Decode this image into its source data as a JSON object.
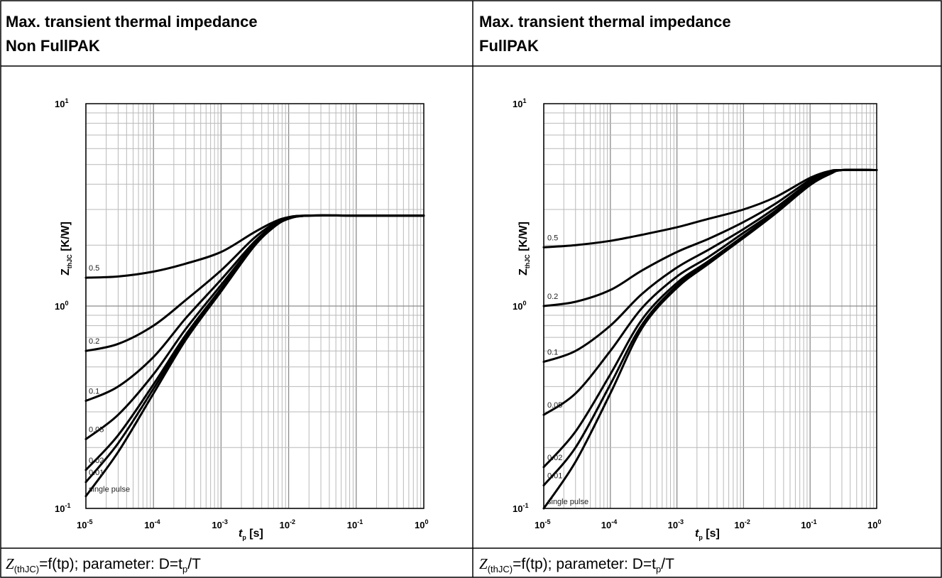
{
  "panels": [
    {
      "title_line1": "Max. transient thermal impedance",
      "title_line2": "Non FullPAK",
      "caption": {
        "z": "Z",
        "sub": "(thJC)",
        "mid": "=f(tp); parameter: D=t",
        "psub": "p",
        "tail": "/T"
      }
    },
    {
      "title_line1": "Max. transient thermal impedance",
      "title_line2": "FullPAK",
      "caption": {
        "z": "Z",
        "sub": "(thJC)",
        "mid": "=f(tp); parameter: D=t",
        "psub": "p",
        "tail": "/T"
      }
    }
  ],
  "chart_data": [
    {
      "type": "line",
      "title": "",
      "xlabel": "tp [s]",
      "ylabel": "ZthJC [K/W]",
      "x_scale": "log",
      "y_scale": "log",
      "xlim": [
        1e-05,
        1
      ],
      "ylim": [
        0.1,
        10
      ],
      "grid": true,
      "legend": "inline labels at left",
      "x_ticks": [
        {
          "base": "10",
          "exp": "-5"
        },
        {
          "base": "10",
          "exp": "-4"
        },
        {
          "base": "10",
          "exp": "-3"
        },
        {
          "base": "10",
          "exp": "-2"
        },
        {
          "base": "10",
          "exp": "-1"
        },
        {
          "base": "10",
          "exp": "0"
        }
      ],
      "y_ticks": [
        {
          "base": "10",
          "exp": "-1"
        },
        {
          "base": "10",
          "exp": "0"
        },
        {
          "base": "10",
          "exp": "1"
        }
      ],
      "x_label_parts": {
        "t": "t",
        "sub": "p",
        "unit": " [s]"
      },
      "y_label_parts": {
        "z": "Z",
        "sub": "thJC",
        "unit": " [K/W]"
      },
      "series": [
        {
          "name": "0.5",
          "x": [
            1e-05,
            3e-05,
            0.0001,
            0.0003,
            0.001,
            0.003,
            0.006,
            0.01,
            0.02,
            0.1,
            1
          ],
          "y": [
            1.38,
            1.4,
            1.48,
            1.62,
            1.85,
            2.3,
            2.6,
            2.75,
            2.8,
            2.8,
            2.8
          ]
        },
        {
          "name": "0.2",
          "x": [
            1e-05,
            3e-05,
            0.0001,
            0.0003,
            0.001,
            0.003,
            0.006,
            0.01,
            0.02,
            0.1,
            1
          ],
          "y": [
            0.6,
            0.65,
            0.8,
            1.07,
            1.5,
            2.15,
            2.55,
            2.75,
            2.8,
            2.8,
            2.8
          ]
        },
        {
          "name": "0.1",
          "x": [
            1e-05,
            3e-05,
            0.0001,
            0.0003,
            0.001,
            0.003,
            0.006,
            0.01,
            0.02,
            0.1,
            1
          ],
          "y": [
            0.34,
            0.4,
            0.56,
            0.87,
            1.35,
            2.05,
            2.5,
            2.73,
            2.8,
            2.8,
            2.8
          ]
        },
        {
          "name": "0.05",
          "x": [
            1e-05,
            3e-05,
            0.0001,
            0.0003,
            0.001,
            0.003,
            0.006,
            0.01,
            0.02,
            0.1,
            1
          ],
          "y": [
            0.22,
            0.29,
            0.46,
            0.77,
            1.27,
            2.0,
            2.48,
            2.72,
            2.8,
            2.8,
            2.8
          ]
        },
        {
          "name": "0.02",
          "x": [
            1e-05,
            3e-05,
            0.0001,
            0.0003,
            0.001,
            0.003,
            0.006,
            0.01,
            0.02,
            0.1,
            1
          ],
          "y": [
            0.155,
            0.23,
            0.41,
            0.72,
            1.22,
            1.97,
            2.47,
            2.71,
            2.8,
            2.8,
            2.8
          ]
        },
        {
          "name": "0.01",
          "x": [
            1e-05,
            3e-05,
            0.0001,
            0.0003,
            0.001,
            0.003,
            0.006,
            0.01,
            0.02,
            0.1,
            1
          ],
          "y": [
            0.135,
            0.21,
            0.39,
            0.7,
            1.2,
            1.96,
            2.46,
            2.71,
            2.8,
            2.8,
            2.8
          ]
        },
        {
          "name": "single pulse",
          "x": [
            1e-05,
            3e-05,
            0.0001,
            0.0003,
            0.001,
            0.003,
            0.006,
            0.01,
            0.02,
            0.1,
            1
          ],
          "y": [
            0.115,
            0.19,
            0.37,
            0.68,
            1.18,
            1.95,
            2.45,
            2.7,
            2.8,
            2.8,
            2.8
          ]
        }
      ]
    },
    {
      "type": "line",
      "title": "",
      "xlabel": "tp [s]",
      "ylabel": "ZthJC [K/W]",
      "x_scale": "log",
      "y_scale": "log",
      "xlim": [
        1e-05,
        1
      ],
      "ylim": [
        0.1,
        10
      ],
      "grid": true,
      "legend": "inline labels at left",
      "x_ticks": [
        {
          "base": "10",
          "exp": "-5"
        },
        {
          "base": "10",
          "exp": "-4"
        },
        {
          "base": "10",
          "exp": "-3"
        },
        {
          "base": "10",
          "exp": "-2"
        },
        {
          "base": "10",
          "exp": "-1"
        },
        {
          "base": "10",
          "exp": "0"
        }
      ],
      "y_ticks": [
        {
          "base": "10",
          "exp": "-1"
        },
        {
          "base": "10",
          "exp": "0"
        },
        {
          "base": "10",
          "exp": "1"
        }
      ],
      "x_label_parts": {
        "t": "t",
        "sub": "p",
        "unit": " [s]"
      },
      "y_label_parts": {
        "z": "Z",
        "sub": "thJC",
        "unit": " [K/W]"
      },
      "series": [
        {
          "name": "0.5",
          "x": [
            1e-05,
            3e-05,
            0.0001,
            0.0003,
            0.001,
            0.003,
            0.01,
            0.03,
            0.1,
            0.2,
            0.3,
            1
          ],
          "y": [
            1.95,
            2.0,
            2.1,
            2.25,
            2.45,
            2.7,
            3.0,
            3.45,
            4.3,
            4.65,
            4.7,
            4.7
          ]
        },
        {
          "name": "0.2",
          "x": [
            1e-05,
            3e-05,
            0.0001,
            0.0003,
            0.001,
            0.003,
            0.01,
            0.03,
            0.1,
            0.2,
            0.3,
            1
          ],
          "y": [
            1.0,
            1.05,
            1.2,
            1.5,
            1.85,
            2.15,
            2.6,
            3.2,
            4.2,
            4.6,
            4.7,
            4.7
          ]
        },
        {
          "name": "0.1",
          "x": [
            1e-05,
            3e-05,
            0.0001,
            0.0003,
            0.001,
            0.003,
            0.01,
            0.03,
            0.1,
            0.2,
            0.3,
            1
          ],
          "y": [
            0.53,
            0.6,
            0.8,
            1.15,
            1.55,
            1.9,
            2.4,
            3.05,
            4.1,
            4.55,
            4.7,
            4.7
          ]
        },
        {
          "name": "0.05",
          "x": [
            1e-05,
            3e-05,
            0.0001,
            0.0003,
            0.001,
            0.003,
            0.01,
            0.03,
            0.1,
            0.2,
            0.3,
            1
          ],
          "y": [
            0.29,
            0.37,
            0.6,
            0.98,
            1.4,
            1.75,
            2.3,
            2.95,
            4.05,
            4.5,
            4.7,
            4.7
          ]
        },
        {
          "name": "0.02",
          "x": [
            1e-05,
            3e-05,
            0.0001,
            0.0003,
            0.001,
            0.003,
            0.01,
            0.03,
            0.1,
            0.2,
            0.3,
            1
          ],
          "y": [
            0.16,
            0.24,
            0.46,
            0.86,
            1.3,
            1.67,
            2.22,
            2.9,
            4.0,
            4.5,
            4.7,
            4.7
          ]
        },
        {
          "name": "0.01",
          "x": [
            1e-05,
            3e-05,
            0.0001,
            0.0003,
            0.001,
            0.003,
            0.01,
            0.03,
            0.1,
            0.2,
            0.3,
            1
          ],
          "y": [
            0.13,
            0.2,
            0.41,
            0.81,
            1.26,
            1.64,
            2.19,
            2.88,
            3.98,
            4.5,
            4.7,
            4.7
          ]
        },
        {
          "name": "single pulse",
          "x": [
            1e-05,
            3e-05,
            0.0001,
            0.0003,
            0.001,
            0.003,
            0.01,
            0.03,
            0.1,
            0.2,
            0.3,
            1
          ],
          "y": [
            0.1,
            0.17,
            0.37,
            0.78,
            1.23,
            1.62,
            2.17,
            2.86,
            3.96,
            4.5,
            4.7,
            4.7
          ]
        }
      ]
    }
  ]
}
